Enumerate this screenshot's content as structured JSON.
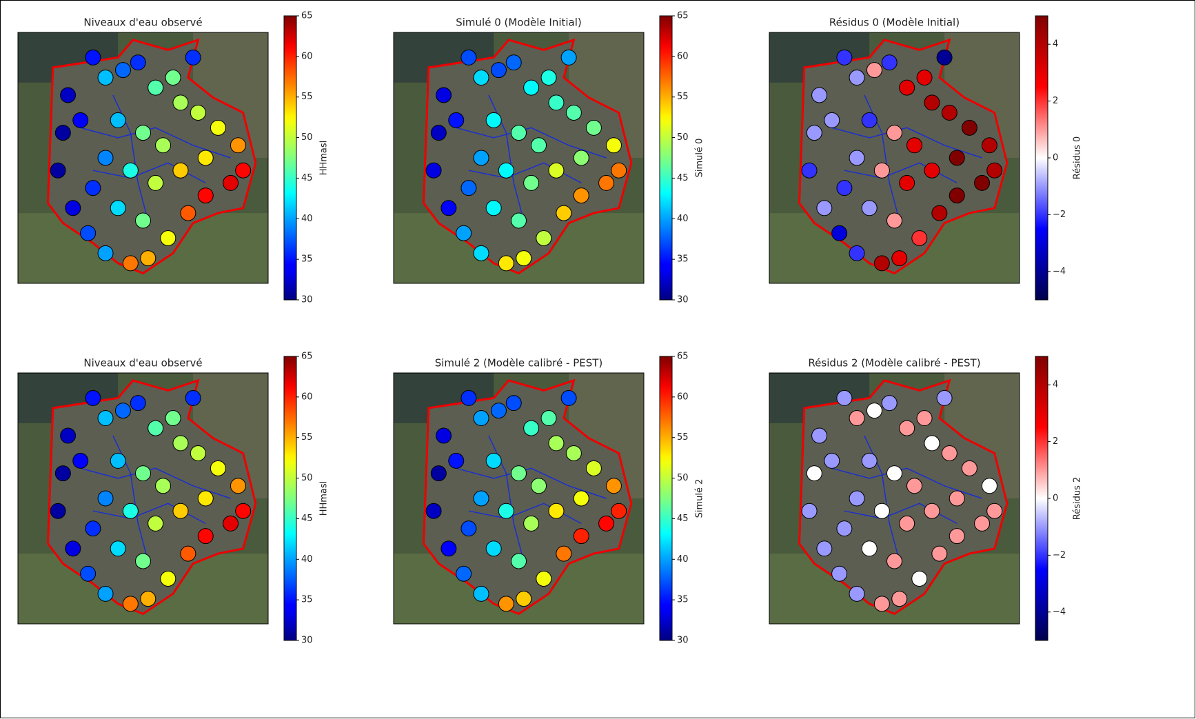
{
  "chart_data": [
    {
      "type": "scatter",
      "title": "Niveaux d'eau observé",
      "colorbar_label": "HHmasl",
      "colormap": "jet",
      "x": [
        20,
        18,
        16,
        22,
        28,
        35,
        45,
        52,
        60,
        68,
        75,
        85,
        90,
        88,
        80,
        72,
        65,
        55,
        48,
        42,
        35,
        30,
        70,
        62,
        40,
        50,
        58,
        45,
        55,
        65,
        35,
        30,
        40,
        50,
        75,
        25
      ],
      "y": [
        75,
        60,
        45,
        30,
        20,
        12,
        8,
        10,
        18,
        28,
        35,
        40,
        45,
        55,
        62,
        68,
        72,
        78,
        88,
        85,
        82,
        90,
        90,
        82,
        65,
        60,
        55,
        45,
        40,
        45,
        50,
        38,
        30,
        25,
        50,
        65
      ],
      "values": [
        32,
        31,
        31,
        33,
        37,
        40,
        57,
        55,
        52,
        58,
        61,
        62,
        61,
        56,
        52,
        50,
        49,
        46,
        36,
        38,
        41,
        35,
        36,
        47,
        41,
        47,
        49,
        44,
        50,
        54,
        39,
        36,
        42,
        47,
        53,
        34
      ],
      "xlim": [
        0,
        100
      ],
      "ylim": [
        0,
        100
      ],
      "clim": [
        30,
        65
      ],
      "cticks": [
        30,
        35,
        40,
        45,
        50,
        55,
        60,
        65
      ]
    },
    {
      "type": "scatter",
      "title": "Simulé 0 (Modèle Initial)",
      "colorbar_label": "Simulé 0",
      "colormap": "jet",
      "x": [
        20,
        18,
        16,
        22,
        28,
        35,
        45,
        52,
        60,
        68,
        75,
        85,
        90,
        88,
        80,
        72,
        65,
        55,
        48,
        42,
        35,
        30,
        70,
        62,
        40,
        50,
        58,
        45,
        55,
        65,
        35,
        30,
        40,
        50,
        75,
        25
      ],
      "y": [
        75,
        60,
        45,
        30,
        20,
        12,
        8,
        10,
        18,
        28,
        35,
        40,
        45,
        55,
        62,
        68,
        72,
        78,
        88,
        85,
        82,
        90,
        90,
        82,
        65,
        60,
        55,
        45,
        40,
        45,
        50,
        38,
        30,
        25,
        50,
        65
      ],
      "values": [
        33,
        32,
        33,
        34,
        40,
        42,
        53,
        52,
        50,
        54,
        56,
        57,
        57,
        52,
        47,
        46,
        45,
        43,
        38,
        37,
        42,
        37,
        40,
        44,
        43,
        46,
        46,
        43,
        47,
        51,
        40,
        38,
        43,
        46,
        48,
        35
      ],
      "xlim": [
        0,
        100
      ],
      "ylim": [
        0,
        100
      ],
      "clim": [
        30,
        65
      ],
      "cticks": [
        30,
        35,
        40,
        45,
        50,
        55,
        60,
        65
      ]
    },
    {
      "type": "scatter",
      "title": "Résidus 0 (Modèle Initial)",
      "colorbar_label": "Résidus 0",
      "colormap": "seismic",
      "x": [
        20,
        18,
        16,
        22,
        28,
        35,
        45,
        52,
        60,
        68,
        75,
        85,
        90,
        88,
        80,
        72,
        65,
        55,
        48,
        42,
        35,
        30,
        70,
        62,
        40,
        50,
        58,
        45,
        55,
        65,
        35,
        30,
        40,
        50,
        75,
        25
      ],
      "y": [
        75,
        60,
        45,
        30,
        20,
        12,
        8,
        10,
        18,
        28,
        35,
        40,
        45,
        55,
        62,
        68,
        72,
        78,
        88,
        85,
        82,
        90,
        90,
        82,
        65,
        60,
        55,
        45,
        40,
        45,
        50,
        38,
        30,
        25,
        50,
        65
      ],
      "values": [
        -1,
        -1,
        -2,
        -1,
        -3,
        -2,
        4,
        3,
        2,
        4,
        5,
        5,
        4,
        4,
        5,
        4,
        4,
        3,
        -2,
        1,
        -1,
        -2,
        -4,
        3,
        -2,
        1,
        3,
        1,
        3,
        3,
        -1,
        -2,
        -1,
        1,
        5,
        -1
      ],
      "xlim": [
        0,
        100
      ],
      "ylim": [
        0,
        100
      ],
      "clim": [
        -5,
        5
      ],
      "cticks": [
        {
          "value": -4,
          "label": "−4"
        },
        {
          "value": -2,
          "label": "−2"
        },
        0,
        2,
        4
      ]
    },
    {
      "type": "scatter",
      "title": "Niveaux d'eau observé",
      "colorbar_label": "HHmasl",
      "colormap": "jet",
      "x": [
        20,
        18,
        16,
        22,
        28,
        35,
        45,
        52,
        60,
        68,
        75,
        85,
        90,
        88,
        80,
        72,
        65,
        55,
        48,
        42,
        35,
        30,
        70,
        62,
        40,
        50,
        58,
        45,
        55,
        65,
        35,
        30,
        40,
        50,
        75,
        25
      ],
      "y": [
        75,
        60,
        45,
        30,
        20,
        12,
        8,
        10,
        18,
        28,
        35,
        40,
        45,
        55,
        62,
        68,
        72,
        78,
        88,
        85,
        82,
        90,
        90,
        82,
        65,
        60,
        55,
        45,
        40,
        45,
        50,
        38,
        30,
        25,
        50,
        65
      ],
      "values": [
        32,
        31,
        31,
        33,
        37,
        40,
        57,
        55,
        52,
        58,
        61,
        62,
        61,
        56,
        52,
        50,
        49,
        46,
        36,
        38,
        41,
        35,
        36,
        47,
        41,
        47,
        49,
        44,
        50,
        54,
        39,
        36,
        42,
        47,
        53,
        34
      ],
      "xlim": [
        0,
        100
      ],
      "ylim": [
        0,
        100
      ],
      "clim": [
        30,
        65
      ],
      "cticks": [
        30,
        35,
        40,
        45,
        50,
        55,
        60,
        65
      ]
    },
    {
      "type": "scatter",
      "title": "Simulé 2 (Modèle calibré - PEST)",
      "colorbar_label": "Simulé 2",
      "colormap": "jet",
      "x": [
        20,
        18,
        16,
        22,
        28,
        35,
        45,
        52,
        60,
        68,
        75,
        85,
        90,
        88,
        80,
        72,
        65,
        55,
        48,
        42,
        35,
        30,
        70,
        62,
        40,
        50,
        58,
        45,
        55,
        65,
        35,
        30,
        40,
        50,
        75,
        25
      ],
      "y": [
        75,
        60,
        45,
        30,
        20,
        12,
        8,
        10,
        18,
        28,
        35,
        40,
        45,
        55,
        62,
        68,
        72,
        78,
        88,
        85,
        82,
        90,
        90,
        82,
        65,
        60,
        55,
        45,
        40,
        45,
        50,
        38,
        30,
        25,
        50,
        65
      ],
      "values": [
        33,
        31,
        32,
        34,
        38,
        41,
        56,
        54,
        52,
        57,
        60,
        61,
        60,
        56,
        51,
        49,
        49,
        45,
        37,
        38,
        40,
        36,
        37,
        46,
        42,
        47,
        48,
        44,
        49,
        53,
        40,
        37,
        42,
        46,
        52,
        35
      ],
      "xlim": [
        0,
        100
      ],
      "ylim": [
        0,
        100
      ],
      "clim": [
        30,
        65
      ],
      "cticks": [
        30,
        35,
        40,
        45,
        50,
        55,
        60,
        65
      ]
    },
    {
      "type": "scatter",
      "title": "Résidus 2 (Modèle calibré - PEST)",
      "colorbar_label": "Résidus 2",
      "colormap": "seismic",
      "x": [
        20,
        18,
        16,
        22,
        28,
        35,
        45,
        52,
        60,
        68,
        75,
        85,
        90,
        88,
        80,
        72,
        65,
        55,
        48,
        42,
        35,
        30,
        70,
        62,
        40,
        50,
        58,
        45,
        55,
        65,
        35,
        30,
        40,
        50,
        75,
        25
      ],
      "y": [
        75,
        60,
        45,
        30,
        20,
        12,
        8,
        10,
        18,
        28,
        35,
        40,
        45,
        55,
        62,
        68,
        72,
        78,
        88,
        85,
        82,
        90,
        90,
        82,
        65,
        60,
        55,
        45,
        40,
        45,
        50,
        38,
        30,
        25,
        50,
        65
      ],
      "values": [
        -1,
        0,
        -1,
        -1,
        -1,
        -1,
        1,
        1,
        0,
        1,
        1,
        1,
        1,
        0,
        1,
        1,
        0,
        1,
        -1,
        0,
        1,
        -1,
        -1,
        1,
        -1,
        0,
        1,
        0,
        1,
        1,
        -1,
        -1,
        0,
        1,
        1,
        -1
      ],
      "xlim": [
        0,
        100
      ],
      "ylim": [
        0,
        100
      ],
      "clim": [
        -5,
        5
      ],
      "cticks": [
        {
          "value": -4,
          "label": "−4"
        },
        {
          "value": -2,
          "label": "−2"
        },
        0,
        2,
        4
      ]
    }
  ]
}
